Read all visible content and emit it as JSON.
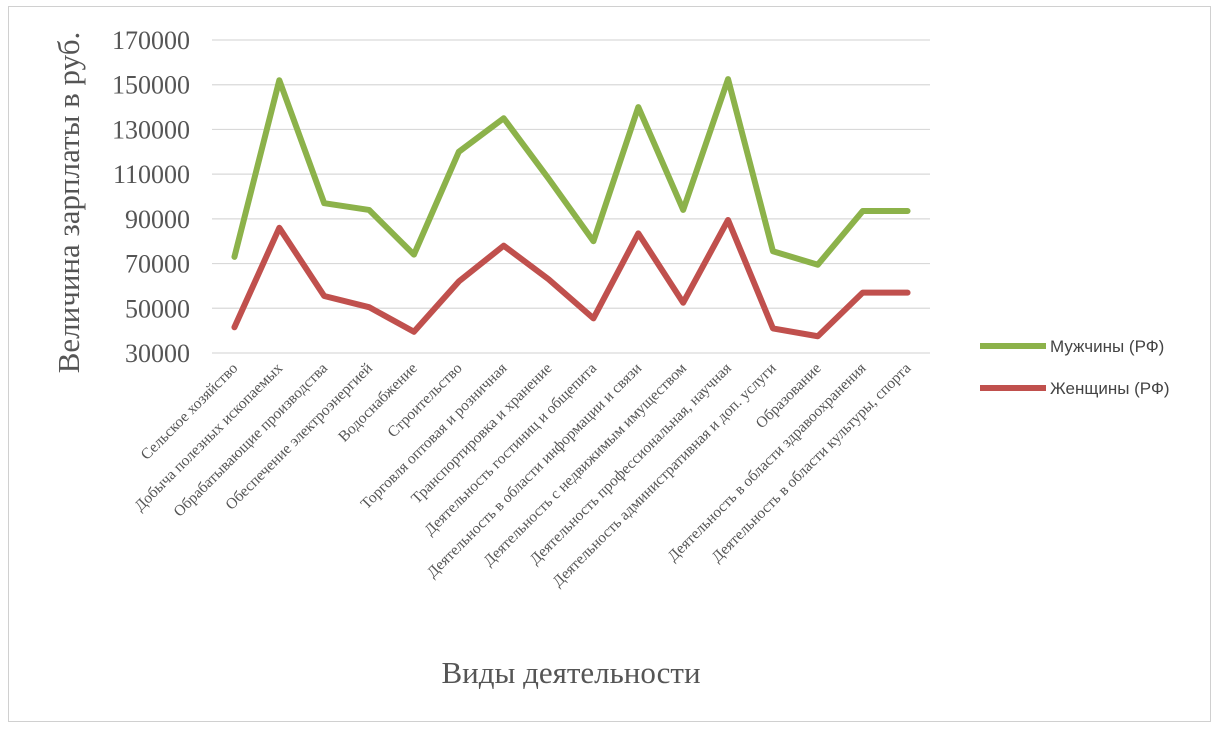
{
  "chart_data": {
    "type": "line",
    "title": "",
    "xlabel": "Виды деятельности",
    "ylabel": "Величина зарплаты в руб.",
    "ylim": [
      30000,
      170000
    ],
    "yticks": [
      30000,
      50000,
      70000,
      90000,
      110000,
      130000,
      150000,
      170000
    ],
    "ytick_labels": [
      "30000",
      "50000",
      "70000",
      "90000",
      "110000",
      "130000",
      "150000",
      "170000"
    ],
    "grid": true,
    "legend_position": "right",
    "categories": [
      "Сельское хозяйство",
      "Добыча полезных ископаемых",
      "Обрабатывающие производства",
      "Обеспечение электроэнергией",
      "Водоснабжение",
      "Строительство",
      "Торговля оптовая и розничная",
      "Транспортировка и хранение",
      "Деятельность гостиниц и общепита",
      "Деятельность в области информации и связи",
      "Деятельность с недвижимым имуществом",
      "Деятельность профессиональная, научная",
      "Деятельность административная и доп. услуги",
      "Образование",
      "Деятельность в области здравоохранения",
      "Деятельность в области культуры, спорта"
    ],
    "series": [
      {
        "name": "Мужчины (РФ)",
        "color": "#8cb24a",
        "values": [
          73000,
          152000,
          97000,
          94000,
          74000,
          120000,
          135000,
          108000,
          80000,
          140000,
          94000,
          152500,
          75500,
          69500,
          93500,
          93500
        ]
      },
      {
        "name": "Женщины (РФ)",
        "color": "#c0504d",
        "values": [
          41500,
          86000,
          55500,
          50500,
          39500,
          62000,
          78000,
          63000,
          45500,
          83500,
          52500,
          89500,
          41000,
          37500,
          57000,
          57000
        ]
      }
    ]
  }
}
